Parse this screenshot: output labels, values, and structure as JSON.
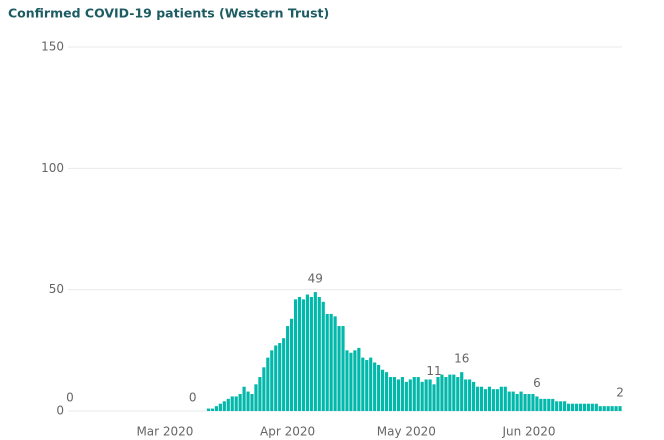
{
  "chart_data": {
    "type": "bar",
    "title": "Confirmed COVID-19 patients (Western Trust)",
    "categories": [
      null,
      null,
      null,
      null,
      null,
      null,
      null,
      null,
      null,
      null,
      null,
      null,
      null,
      null,
      null,
      null,
      null,
      null,
      null,
      null,
      null,
      null,
      null,
      null,
      "Mar 2020",
      null,
      null,
      null,
      null,
      null,
      null,
      null,
      null,
      null,
      null,
      null,
      null,
      null,
      null,
      null,
      null,
      null,
      null,
      null,
      null,
      null,
      null,
      null,
      null,
      null,
      null,
      null,
      null,
      null,
      null,
      "Apr 2020",
      null,
      null,
      null,
      null,
      null,
      null,
      null,
      null,
      null,
      null,
      null,
      null,
      null,
      null,
      null,
      null,
      null,
      null,
      null,
      null,
      null,
      null,
      null,
      null,
      null,
      null,
      null,
      null,
      null,
      "May 2020",
      null,
      null,
      null,
      null,
      null,
      null,
      null,
      null,
      null,
      null,
      null,
      null,
      null,
      null,
      null,
      null,
      null,
      null,
      null,
      null,
      null,
      null,
      null,
      null,
      null,
      null,
      null,
      null,
      null,
      null,
      "Jun 2020",
      null,
      null,
      null,
      null,
      null,
      null,
      null,
      null,
      null,
      null,
      null,
      null,
      null,
      null,
      null,
      null,
      null,
      null,
      null,
      null,
      null,
      null,
      null
    ],
    "values": [
      0,
      0,
      0,
      0,
      0,
      0,
      0,
      0,
      0,
      0,
      0,
      0,
      0,
      0,
      0,
      0,
      0,
      0,
      0,
      0,
      0,
      0,
      0,
      0,
      0,
      0,
      0,
      0,
      0,
      0,
      0,
      0,
      0,
      0,
      0,
      1,
      1,
      2,
      3,
      4,
      5,
      6,
      6,
      7,
      10,
      8,
      7,
      11,
      14,
      18,
      22,
      25,
      27,
      28,
      30,
      35,
      38,
      46,
      47,
      46,
      48,
      47,
      49,
      47,
      45,
      40,
      40,
      39,
      35,
      35,
      25,
      24,
      25,
      26,
      22,
      21,
      22,
      20,
      19,
      17,
      16,
      14,
      14,
      13,
      14,
      12,
      13,
      14,
      14,
      12,
      13,
      13,
      11,
      14,
      15,
      14,
      15,
      15,
      14,
      16,
      13,
      13,
      12,
      10,
      10,
      9,
      10,
      9,
      9,
      10,
      10,
      8,
      8,
      7,
      8,
      7,
      7,
      7,
      6,
      5,
      5,
      5,
      5,
      4,
      4,
      4,
      3,
      3,
      3,
      3,
      3,
      3,
      3,
      3,
      2,
      2,
      2,
      2,
      2,
      2
    ],
    "data_label_indices": [
      0,
      31,
      62,
      92,
      99,
      118,
      139
    ],
    "color": "#01B8AA",
    "ylim": [
      0,
      150
    ],
    "yticks": [
      0,
      50,
      100,
      150
    ],
    "grid": true
  }
}
